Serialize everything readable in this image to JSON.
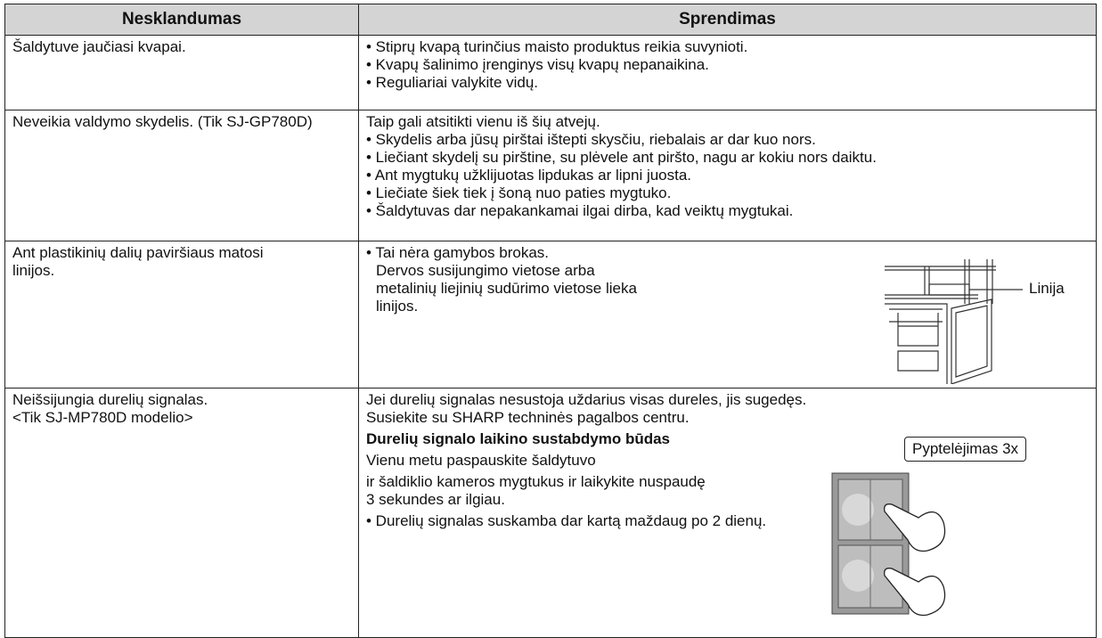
{
  "table": {
    "headers": [
      "Nesklandumas",
      "Sprendimas"
    ],
    "rows": [
      {
        "problem": [
          "Šaldytuve jaučiasi kvapai."
        ],
        "solution": [
          "• Stiprų kvapą turinčius maisto produktus reikia suvynioti.",
          "• Kvapų šalinimo įrenginys visų kvapų nepanaikina.",
          "• Reguliariai valykite vidų."
        ]
      },
      {
        "problem": [
          "Neveikia valdymo skydelis. (Tik SJ-GP780D)"
        ],
        "solution": [
          "Taip gali atsitikti vienu iš šių atvejų.",
          "• Skydelis arba jūsų pirštai ištepti skysčiu, riebalais ar dar kuo nors.",
          "• Liečiant skydelį su pirštine, su plėvele ant piršto, nagu ar kokiu nors daiktu.",
          "• Ant mygtukų užklijuotas lipdukas ar lipni juosta.",
          "• Liečiate šiek tiek į šoną nuo paties mygtuko.",
          "• Šaldytuvas dar nepakankamai ilgai dirba, kad veiktų mygtukai."
        ]
      },
      {
        "problem": [
          "Ant plastikinių dalių paviršiaus matosi linijos."
        ],
        "solution": [
          "• Tai nėra gamybos brokas.",
          "Dervos susijungimo vietose arba",
          "metalinių liejinių sudūrimo vietose lieka",
          "linijos."
        ],
        "figure_label": "Linija"
      },
      {
        "problem": [
          "Neišsijungia durelių signalas.",
          "<Tik SJ-MP780D modelio>"
        ],
        "solution": [
          "Jei durelių signalas nesustoja uždarius visas dureles, jis sugedęs. Susiekite su SHARP techninės pagalbos centru.",
          "Durelių signalo laikino sustabdymo būdas",
          "Vienu metu paspauskite šaldytuvo",
          "ir šaldiklio kameros mygtukus ir laikykite nuspaudę",
          "3 sekundes ar ilgiau.",
          "• Durelių signalas suskamba dar kartą maždaug po 2 dienų."
        ],
        "figure_label": "Pyptelėjimas 3x"
      }
    ]
  }
}
